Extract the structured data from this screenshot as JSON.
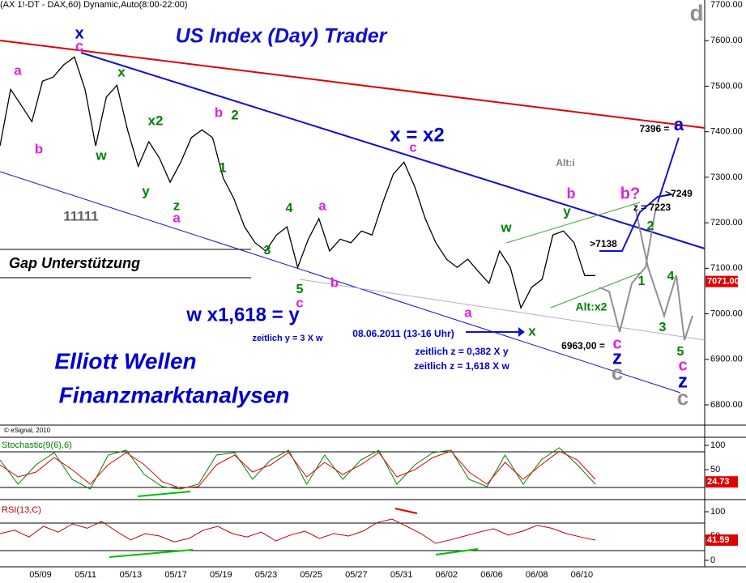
{
  "header": "(AX 1!-DT - DAX,60) Dynamic,Auto(8:00-22:00)",
  "copyright": "© eSignal, 2010",
  "title": "US Index (Day) Trader",
  "chart_data": [
    {
      "type": "line",
      "name": "price",
      "color": "#000000",
      "values": [
        7369,
        7493,
        7458,
        7422,
        7511,
        7520,
        7547,
        7564,
        7493,
        7369,
        7476,
        7502,
        7404,
        7324,
        7378,
        7342,
        7289,
        7333,
        7387,
        7404,
        7387,
        7298,
        7253,
        7191,
        7156,
        7138,
        7173,
        7191,
        7102,
        7164,
        7209,
        7138,
        7164,
        7156,
        7182,
        7173,
        7244,
        7307,
        7333,
        7280,
        7209,
        7156,
        7120,
        7102,
        7120,
        7093,
        7067,
        7138,
        7102,
        7013,
        7058,
        7076,
        7173,
        7182,
        7156,
        7084,
        7084
      ],
      "xtick_labels": [
        "05/09",
        "05/11",
        "05/13",
        "05/17",
        "05/19",
        "05/23",
        "05/25",
        "05/27",
        "05/31",
        "06/02",
        "06/06",
        "06/08",
        "06/10"
      ],
      "ylim": [
        6800,
        7700
      ],
      "yticks": [
        {
          "value": 6800,
          "label": "6800.00"
        },
        {
          "value": 6900,
          "label": "6900.00"
        },
        {
          "value": 7000,
          "label": "7000.00"
        },
        {
          "value": 7100,
          "label": "7100.00"
        },
        {
          "value": 7200,
          "label": "7200.00"
        },
        {
          "value": 7300,
          "label": "7300.00"
        },
        {
          "value": 7400,
          "label": "7400.00"
        },
        {
          "value": 7500,
          "label": "7500.00"
        },
        {
          "value": 7600,
          "label": "7600.00"
        },
        {
          "value": 7700,
          "label": "7700.00"
        }
      ],
      "last_value": {
        "value": 7071,
        "label": "7071.00"
      }
    },
    {
      "type": "line",
      "name": "Stochastic(9(6),6)",
      "series": [
        {
          "color": "#008000",
          "values": [
            70,
            20,
            60,
            85,
            30,
            10,
            80,
            90,
            40,
            15,
            10,
            20,
            80,
            85,
            30,
            70,
            90,
            20,
            80,
            30,
            70,
            90,
            20,
            60,
            85,
            90,
            30,
            15,
            80,
            20,
            70,
            95,
            60,
            20
          ]
        },
        {
          "color": "#e00000",
          "values": [
            60,
            35,
            45,
            75,
            50,
            20,
            60,
            85,
            60,
            25,
            12,
            15,
            60,
            80,
            45,
            60,
            85,
            35,
            65,
            40,
            60,
            85,
            35,
            50,
            75,
            88,
            45,
            20,
            65,
            30,
            60,
            88,
            70,
            30
          ]
        }
      ],
      "ylim": [
        0,
        100
      ],
      "yticks": [
        50,
        100
      ],
      "last_value": 24.73
    },
    {
      "type": "line",
      "name": "RSI(13,C)",
      "color": "#c00000",
      "values": [
        55,
        62,
        48,
        70,
        58,
        75,
        66,
        80,
        60,
        42,
        55,
        50,
        38,
        45,
        62,
        70,
        55,
        48,
        58,
        40,
        52,
        60,
        45,
        55,
        50,
        60,
        78,
        85,
        70,
        55,
        35,
        42,
        50,
        58,
        65,
        52,
        60,
        72,
        66,
        55,
        48,
        41.59
      ],
      "ylim": [
        0,
        100
      ],
      "yticks": [
        0,
        50,
        100
      ],
      "last_value": 41.59
    }
  ],
  "annotations": [
    {
      "text": "x",
      "color": "#0000cc"
    },
    {
      "text": "c",
      "color": "#e020e0"
    },
    {
      "text": "a",
      "color": "#e020e0"
    },
    {
      "text": "b",
      "color": "#e020e0"
    },
    {
      "text": "w",
      "color": "#008000"
    },
    {
      "text": "x",
      "color": "#008000"
    },
    {
      "text": "x2",
      "color": "#008000"
    },
    {
      "text": "y",
      "color": "#008000"
    },
    {
      "text": "z",
      "color": "#008000"
    },
    {
      "text": "a",
      "color": "#e020e0"
    },
    {
      "text": "b",
      "color": "#e020e0"
    },
    {
      "text": "2",
      "color": "#008000"
    },
    {
      "text": "1",
      "color": "#008000"
    },
    {
      "text": "11111",
      "color": "#606060"
    },
    {
      "text": "3",
      "color": "#008000"
    },
    {
      "text": "4",
      "color": "#008000"
    },
    {
      "text": "5",
      "color": "#008000"
    },
    {
      "text": "c",
      "color": "#e020e0"
    },
    {
      "text": "a",
      "color": "#e020e0"
    },
    {
      "text": "b",
      "color": "#e020e0"
    },
    {
      "text": "x = x2",
      "color": "#0000cc"
    },
    {
      "text": "c",
      "color": "#e020e0"
    },
    {
      "text": "a",
      "color": "#e020e0"
    },
    {
      "text": "x",
      "color": "#008000"
    },
    {
      "text": "w",
      "color": "#008000"
    },
    {
      "text": "y",
      "color": "#008000"
    },
    {
      "text": "b",
      "color": "#e020e0"
    },
    {
      "text": "b?",
      "color": "#e020e0"
    },
    {
      "text": ">7249",
      "color": "#000000"
    },
    {
      "text": "z = 7223",
      "color": "#000000"
    },
    {
      "text": "2",
      "color": "#008000"
    },
    {
      "text": ">7138",
      "color": "#000000"
    },
    {
      "text": "1",
      "color": "#008000"
    },
    {
      "text": "4",
      "color": "#008000"
    },
    {
      "text": "3",
      "color": "#008000"
    },
    {
      "text": "Alt:x2",
      "color": "#008000"
    },
    {
      "text": "Alt:i",
      "color": "#808080"
    },
    {
      "text": "7396 =",
      "color": "#000000"
    },
    {
      "text": "a",
      "color": "#0000cc"
    },
    {
      "text": "6963,00 =",
      "color": "#000000"
    },
    {
      "text": "c",
      "color": "#e020e0"
    },
    {
      "text": "z",
      "color": "#0000cc"
    },
    {
      "text": "c",
      "color": "#909090"
    },
    {
      "text": "5",
      "color": "#008000"
    },
    {
      "text": "c",
      "color": "#e020e0"
    },
    {
      "text": "z",
      "color": "#0000cc"
    },
    {
      "text": "c",
      "color": "#909090"
    },
    {
      "text": "d",
      "color": "#909090"
    },
    {
      "text": "w x1,618 = y",
      "color": "#0000cc"
    },
    {
      "text": "zeitlich y = 3 X w",
      "color": "#0000cc"
    },
    {
      "text": "08.06.2011 (13-16 Uhr)",
      "color": "#0000cc"
    },
    {
      "text": "zeitlich z = 0,382 X y",
      "color": "#0000cc"
    },
    {
      "text": "zeitlich z = 1,618 X w",
      "color": "#0000cc"
    },
    {
      "text": "Elliott Wellen",
      "color": "#0000cc"
    },
    {
      "text": "Finanzmarktanalysen",
      "color": "#0000cc"
    },
    {
      "text": "Gap Unterstützung",
      "color": "#000000"
    }
  ]
}
